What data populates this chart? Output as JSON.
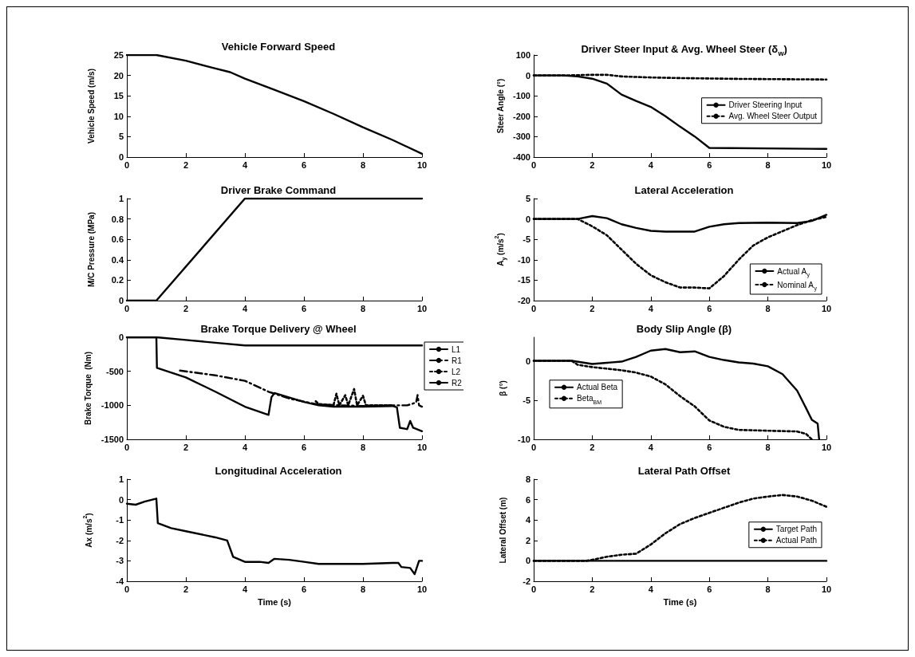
{
  "chart_data": [
    {
      "type": "line",
      "title": "Vehicle Forward Speed",
      "ylabel": "Vehicle Speed (m/s)",
      "xlim": [
        0,
        10
      ],
      "xticks": [
        0,
        2,
        4,
        6,
        8,
        10
      ],
      "ylim": [
        0,
        25
      ],
      "yticks": [
        0,
        5,
        10,
        15,
        20,
        25
      ],
      "grid": false,
      "legend": false,
      "marker": "none",
      "series": [
        {
          "color": "#000000",
          "line_style": "solid",
          "x": [
            0,
            1,
            2,
            3,
            3.5,
            4,
            5,
            6,
            7,
            8,
            9,
            10
          ],
          "values": [
            25,
            25,
            23.6,
            21.7,
            20.8,
            19.2,
            16.5,
            13.7,
            10.6,
            7.3,
            4.2,
            0.8
          ]
        }
      ]
    },
    {
      "type": "line",
      "title": "Driver Steer Input & Avg. Wheel Steer (δ$_{w}$)",
      "ylabel": "Steer Angle (°)",
      "xlim": [
        0,
        10
      ],
      "xticks": [
        0,
        2,
        4,
        6,
        8,
        10
      ],
      "ylim": [
        -400,
        100
      ],
      "yticks": [
        -400,
        -300,
        -200,
        -100,
        0,
        100
      ],
      "grid": false,
      "legend": "right",
      "marker": "none",
      "series": [
        {
          "name": "Driver Steering Input",
          "color": "#000000",
          "line_style": "solid",
          "x": [
            0,
            1,
            1.5,
            2,
            2.5,
            3,
            3.5,
            4,
            4.5,
            5,
            5.5,
            6,
            10
          ],
          "values": [
            0,
            0,
            -5,
            -16,
            -40,
            -94,
            -125,
            -154,
            -200,
            -251,
            -299,
            -355,
            -360
          ]
        },
        {
          "name": "Avg. Wheel Steer Output",
          "color": "#000000",
          "line_style": "dotted",
          "x": [
            0,
            1,
            2,
            2.5,
            3,
            4,
            5,
            6,
            7,
            8,
            9,
            10
          ],
          "values": [
            0,
            0,
            3,
            3,
            -5,
            -10,
            -13,
            -15,
            -17,
            -18,
            -19,
            -20
          ]
        }
      ]
    },
    {
      "type": "line",
      "title": "Driver Brake Command",
      "ylabel": "M/C Pressure (MPa)",
      "xlim": [
        0,
        10
      ],
      "xticks": [
        0,
        2,
        4,
        6,
        8,
        10
      ],
      "ylim": [
        0,
        1
      ],
      "yticks": [
        0,
        0.2,
        0.4,
        0.6,
        0.8,
        1
      ],
      "grid": false,
      "legend": false,
      "marker": "none",
      "series": [
        {
          "color": "#000000",
          "line_style": "solid",
          "x": [
            0,
            1,
            4,
            10
          ],
          "values": [
            0,
            0,
            1,
            1
          ]
        }
      ]
    },
    {
      "type": "line",
      "title": "Lateral Acceleration",
      "ylabel": "A$_{y}$ (m/s$^{2}$)",
      "xlim": [
        0,
        10
      ],
      "xticks": [
        0,
        2,
        4,
        6,
        8,
        10
      ],
      "ylim": [
        -20,
        5
      ],
      "yticks": [
        -20,
        -15,
        -10,
        -5,
        0,
        5
      ],
      "grid": false,
      "legend": "bottom right",
      "marker": "none",
      "series": [
        {
          "name": "Actual A$_{y}$",
          "color": "#000000",
          "line_style": "solid",
          "x": [
            0,
            1.5,
            2,
            2.5,
            3,
            3.5,
            4,
            4.5,
            5,
            5.5,
            6,
            6.5,
            7,
            8,
            9,
            9.5,
            10
          ],
          "values": [
            0,
            0,
            0.7,
            0.2,
            -1.3,
            -2.2,
            -2.9,
            -3.1,
            -3.1,
            -3.1,
            -1.9,
            -1.3,
            -1,
            -0.9,
            -1,
            -0.5,
            1
          ]
        },
        {
          "name": "Nominal A$_{y}$",
          "color": "#000000",
          "line_style": "dotted",
          "x": [
            0,
            1.5,
            2,
            2.5,
            3,
            3.5,
            4,
            4.5,
            5,
            5.5,
            6,
            6.5,
            7,
            7.5,
            8,
            8.5,
            9,
            9.5,
            10
          ],
          "values": [
            0,
            0,
            -1.8,
            -4,
            -7.5,
            -11,
            -13.8,
            -15.5,
            -16.8,
            -16.8,
            -17,
            -14,
            -10,
            -6.5,
            -4.5,
            -3,
            -1.5,
            -0.3,
            0.5
          ]
        }
      ]
    },
    {
      "type": "line",
      "title": "Brake Torque Delivery @ Wheel",
      "ylabel": "Brake Torque  (Nm)",
      "xlim": [
        0,
        10
      ],
      "xticks": [
        0,
        2,
        4,
        6,
        8,
        10
      ],
      "ylim": [
        -1500,
        0
      ],
      "yticks": [
        -1500,
        -1000,
        -500,
        0
      ],
      "grid": false,
      "legend": "right",
      "marker": "none",
      "series": [
        {
          "name": "L1",
          "color": "#000000",
          "line_style": "solid",
          "x": [
            0,
            1,
            1.02,
            2,
            3,
            4,
            4.8,
            4.9,
            5,
            6,
            6.5,
            7,
            8,
            9,
            9.15,
            9.25,
            9.5,
            9.6,
            9.7,
            10
          ],
          "values": [
            0,
            0,
            -450,
            -590,
            -800,
            -1020,
            -1140,
            -880,
            -820,
            -950,
            -1000,
            -1020,
            -1020,
            -1010,
            -1030,
            -1330,
            -1350,
            -1230,
            -1330,
            -1380
          ]
        },
        {
          "name": "R1",
          "color": "#000000",
          "line_style": "dashed",
          "x": [
            1.8,
            2.5,
            3,
            4,
            4.8,
            5.5,
            6.5,
            8,
            9,
            9.5,
            9.8,
            9.85,
            9.9,
            10
          ],
          "values": [
            -490,
            -530,
            -560,
            -640,
            -800,
            -900,
            -990,
            -1010,
            -1000,
            -1000,
            -960,
            -850,
            -1000,
            -1020
          ]
        },
        {
          "name": "L2",
          "color": "#000000",
          "line_style": "dotted",
          "x": [
            6.4,
            6.5,
            7,
            7.1,
            7.2,
            7.4,
            7.5,
            7.7,
            7.8,
            8,
            8.1,
            9
          ],
          "values": [
            -940,
            -980,
            -1000,
            -830,
            -1000,
            -850,
            -1000,
            -760,
            -1000,
            -860,
            -1000,
            -1000
          ]
        },
        {
          "name": "R2",
          "color": "#000000",
          "line_style": "solid",
          "x": [
            0,
            1,
            2,
            3,
            4,
            10
          ],
          "values": [
            0,
            0,
            -40,
            -80,
            -120,
            -120
          ]
        }
      ]
    },
    {
      "type": "line",
      "title": "Body Slip Angle (β)",
      "ylabel": "β (°)",
      "xlim": [
        0,
        10
      ],
      "xticks": [
        0,
        2,
        4,
        6,
        8,
        10
      ],
      "ylim": [
        -10,
        3
      ],
      "yticks": [
        -10,
        -5,
        0
      ],
      "grid": false,
      "legend": "left",
      "marker": "none",
      "series": [
        {
          "name": "Actual Beta",
          "color": "#000000",
          "line_style": "solid",
          "x": [
            0,
            1.3,
            2,
            3,
            3.5,
            4,
            4.5,
            5,
            5.5,
            6,
            6.5,
            7,
            7.5,
            8,
            8.5,
            9,
            9.3,
            9.5,
            9.7,
            9.75
          ],
          "values": [
            0,
            0,
            -0.4,
            -0.1,
            0.5,
            1.3,
            1.5,
            1.1,
            1.2,
            0.5,
            0.1,
            -0.2,
            -0.35,
            -0.7,
            -1.7,
            -3.8,
            -6,
            -7.5,
            -8,
            -10
          ]
        },
        {
          "name": "Beta$_{BM}$",
          "color": "#000000",
          "line_style": "dotted",
          "x": [
            0,
            1.3,
            1.5,
            2,
            2.5,
            3,
            3.5,
            4,
            4.5,
            5,
            5.5,
            6,
            6.5,
            7,
            8,
            9,
            9.3,
            9.5
          ],
          "values": [
            0,
            0,
            -0.5,
            -0.8,
            -1,
            -1.2,
            -1.5,
            -2,
            -3,
            -4.5,
            -5.8,
            -7.6,
            -8.4,
            -8.8,
            -8.9,
            -9,
            -9.3,
            -10
          ]
        }
      ]
    },
    {
      "type": "line",
      "title": "Longitudinal Acceleration",
      "xlabel": "Time (s)",
      "ylabel": "Ax (m/s$^{2}$)",
      "xlim": [
        0,
        10
      ],
      "xticks": [
        0,
        2,
        4,
        6,
        8,
        10
      ],
      "ylim": [
        -4,
        1
      ],
      "yticks": [
        -4,
        -3,
        -2,
        -1,
        0,
        1
      ],
      "grid": false,
      "legend": false,
      "marker": "none",
      "series": [
        {
          "color": "#000000",
          "line_style": "solid",
          "x": [
            0,
            0.3,
            0.6,
            1,
            1.05,
            1.5,
            2,
            3,
            3.4,
            3.6,
            4,
            4.5,
            4.8,
            5,
            5.5,
            6,
            6.5,
            8,
            9,
            9.2,
            9.3,
            9.6,
            9.75,
            9.9,
            10
          ],
          "values": [
            -0.2,
            -0.25,
            -0.1,
            0.05,
            -1.15,
            -1.4,
            -1.55,
            -1.85,
            -2,
            -2.8,
            -3.05,
            -3.05,
            -3.1,
            -2.9,
            -2.95,
            -3.05,
            -3.15,
            -3.15,
            -3.1,
            -3.1,
            -3.3,
            -3.35,
            -3.65,
            -3,
            -3
          ]
        }
      ]
    },
    {
      "type": "line",
      "title": "Lateral Path Offset",
      "xlabel": "Time (s)",
      "ylabel": "Lateral Offset (m)",
      "xlim": [
        0,
        10
      ],
      "xticks": [
        0,
        2,
        4,
        6,
        8,
        10
      ],
      "ylim": [
        -2,
        8
      ],
      "yticks": [
        -2,
        0,
        2,
        4,
        6,
        8
      ],
      "grid": false,
      "legend": "right",
      "marker": "none",
      "series": [
        {
          "name": "Target Path",
          "color": "#000000",
          "line_style": "solid",
          "x": [
            0,
            10
          ],
          "values": [
            0,
            0
          ]
        },
        {
          "name": "Actual Path",
          "color": "#000000",
          "line_style": "dotted",
          "x": [
            0,
            1.8,
            2,
            2.5,
            3,
            3.5,
            4,
            4.5,
            5,
            5.5,
            6,
            6.5,
            7,
            7.5,
            8,
            8.5,
            9,
            9.5,
            10
          ],
          "values": [
            0,
            0,
            0.1,
            0.4,
            0.6,
            0.7,
            1.6,
            2.7,
            3.6,
            4.2,
            4.7,
            5.2,
            5.7,
            6.1,
            6.3,
            6.45,
            6.3,
            5.9,
            5.3
          ]
        }
      ]
    }
  ]
}
